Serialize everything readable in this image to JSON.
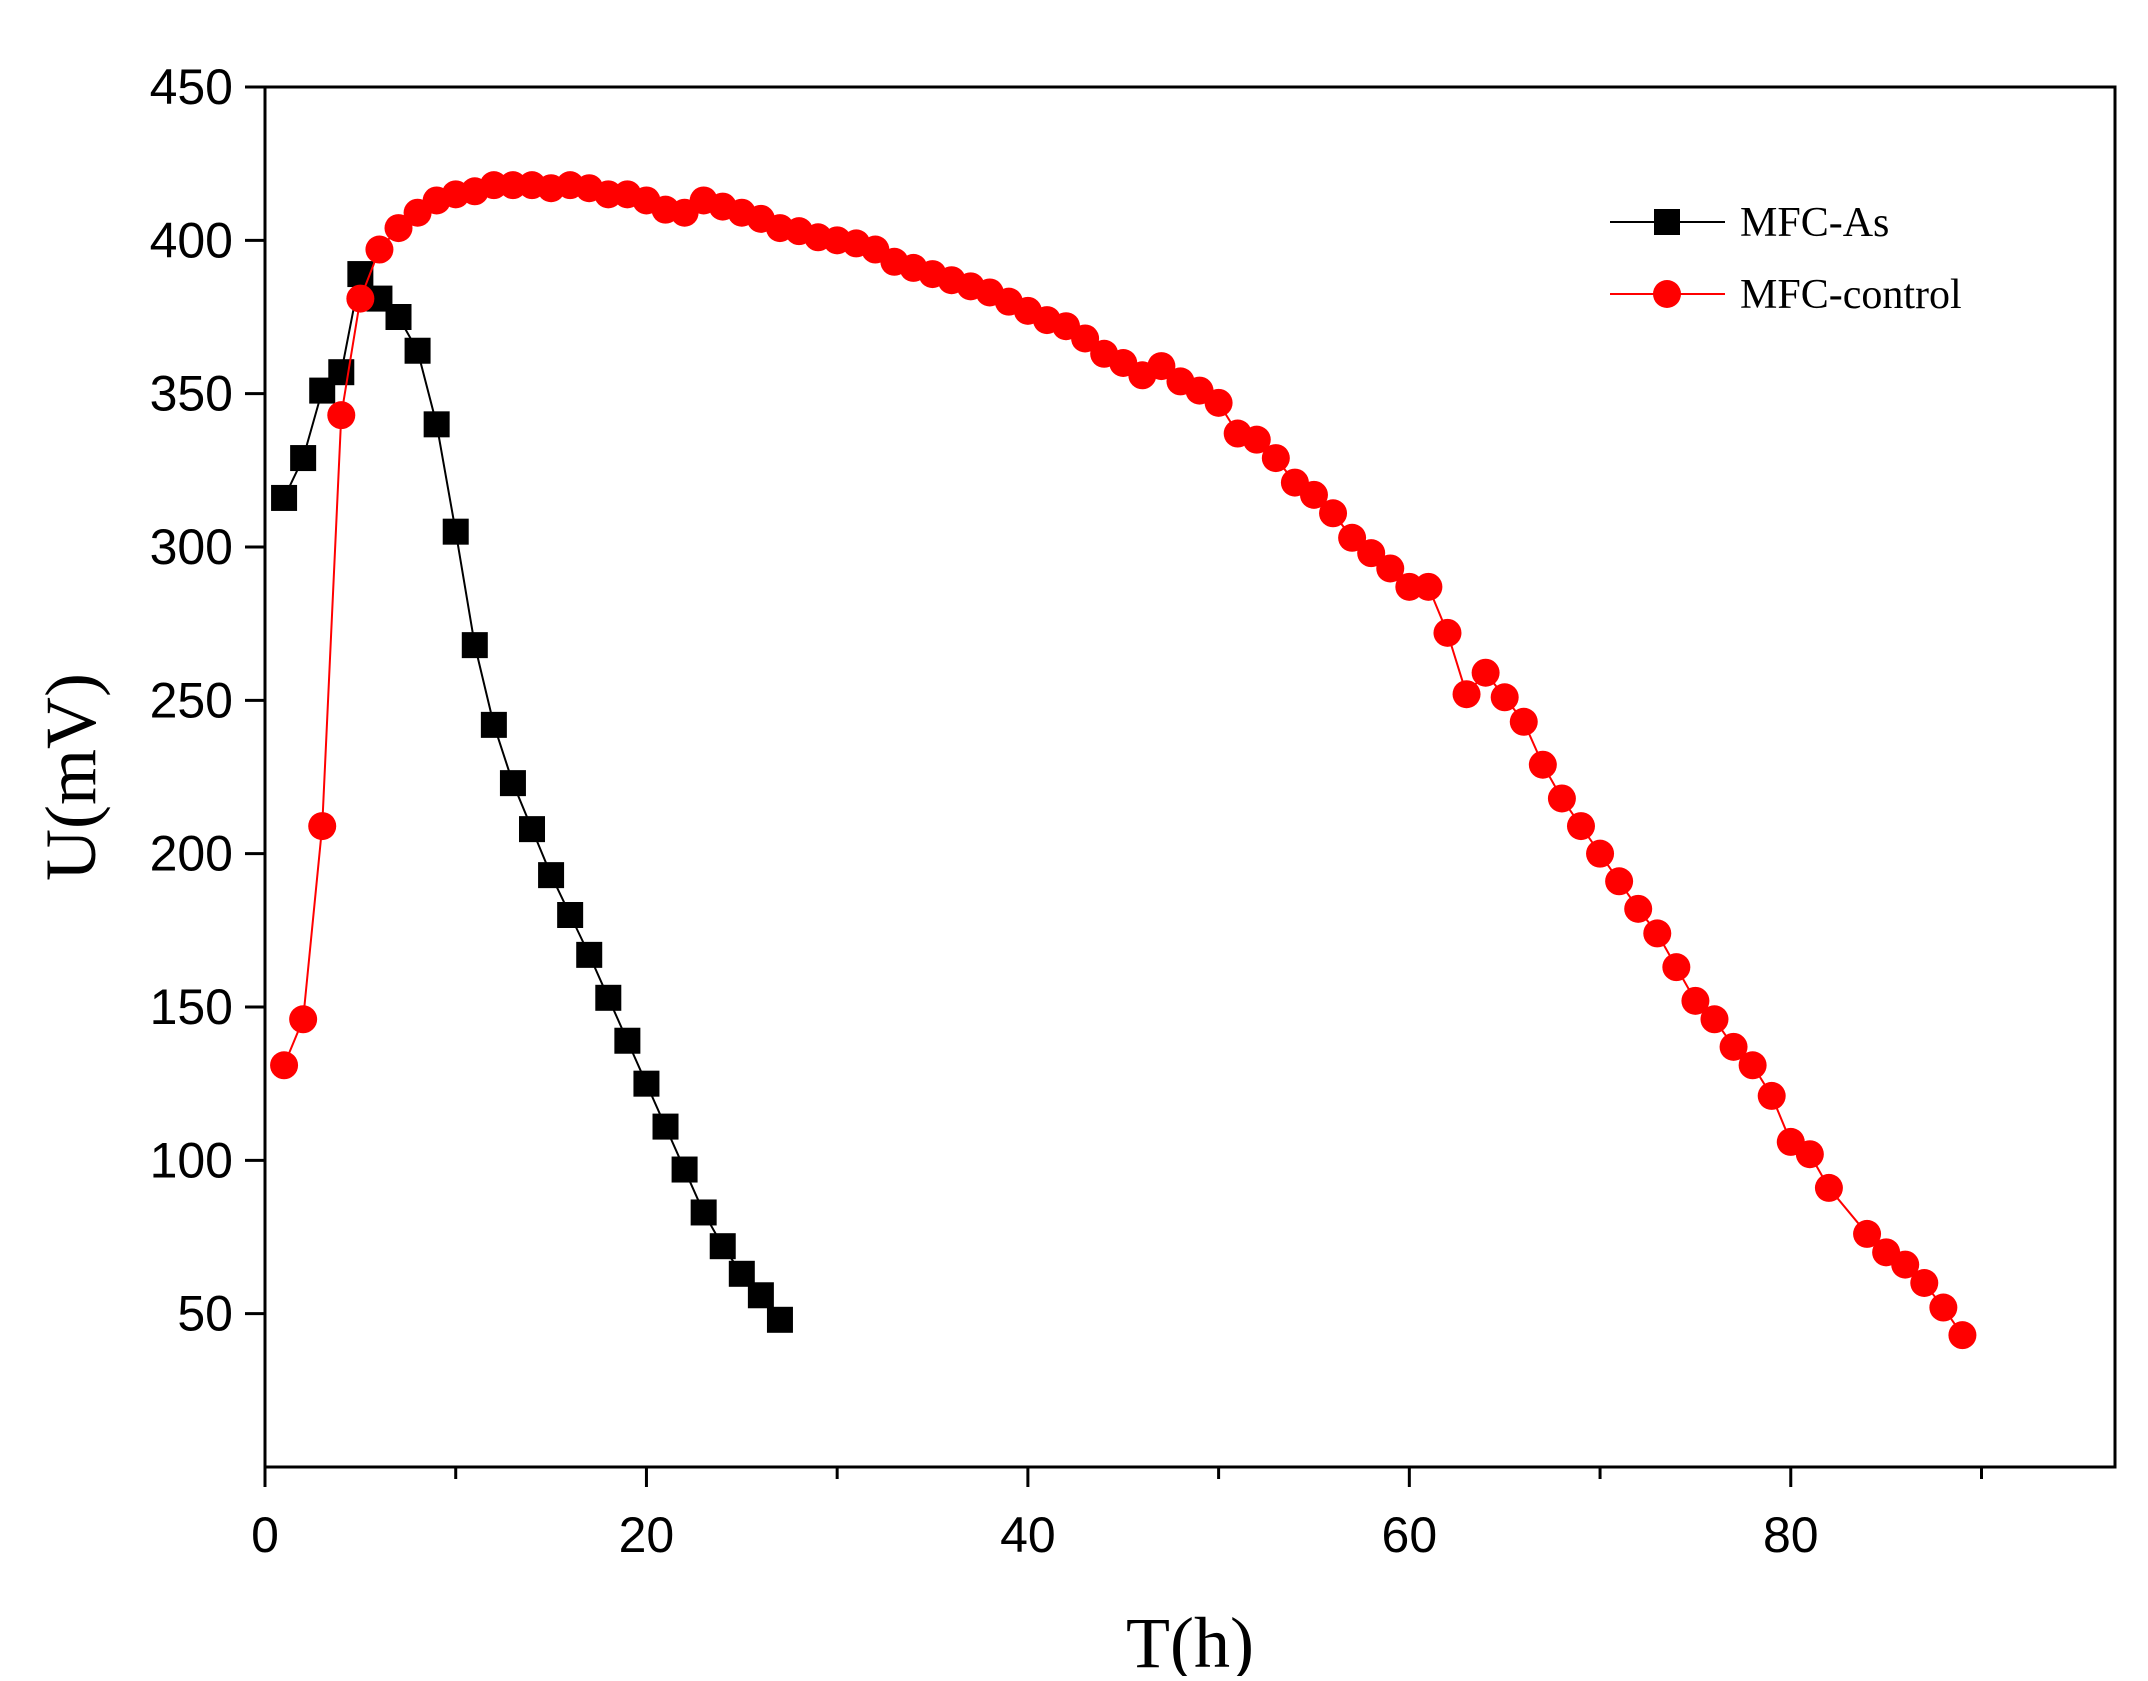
{
  "chart_data": {
    "type": "scatter",
    "title": "",
    "xlabel": "T(h)",
    "ylabel": "U(mV)",
    "xlim": [
      0,
      97
    ],
    "ylim": [
      0,
      450
    ],
    "xticks": [
      0,
      20,
      40,
      60,
      80
    ],
    "xticks_minor": [
      10,
      30,
      50,
      70,
      90
    ],
    "yticks": [
      50,
      100,
      150,
      200,
      250,
      300,
      350,
      400,
      450
    ],
    "grid": false,
    "legend_position": "top-right",
    "series": [
      {
        "name": "MFC-As",
        "color": "#000000",
        "marker": "square",
        "x": [
          1,
          2,
          3,
          4,
          5,
          6,
          7,
          8,
          9,
          10,
          11,
          12,
          13,
          14,
          15,
          16,
          17,
          18,
          19,
          20,
          21,
          22,
          23,
          24,
          25,
          26,
          27
        ],
        "y": [
          316,
          329,
          351,
          357,
          389,
          381,
          375,
          364,
          340,
          305,
          268,
          242,
          223,
          208,
          193,
          180,
          167,
          153,
          139,
          125,
          111,
          97,
          83,
          72,
          63,
          56,
          48
        ]
      },
      {
        "name": "MFC-control",
        "color": "#ff0000",
        "marker": "circle",
        "x": [
          1,
          2,
          3,
          4,
          5,
          6,
          7,
          8,
          9,
          10,
          11,
          12,
          13,
          14,
          15,
          16,
          17,
          18,
          19,
          20,
          21,
          22,
          23,
          24,
          25,
          26,
          27,
          28,
          29,
          30,
          31,
          32,
          33,
          34,
          35,
          36,
          37,
          38,
          39,
          40,
          41,
          42,
          43,
          44,
          45,
          46,
          47,
          48,
          49,
          50,
          51,
          52,
          53,
          54,
          55,
          56,
          57,
          58,
          59,
          60,
          61,
          62,
          63,
          64,
          65,
          66,
          67,
          68,
          69,
          70,
          71,
          72,
          73,
          74,
          75,
          76,
          77,
          78,
          79,
          80,
          81,
          82,
          84,
          85,
          86,
          87,
          88,
          89
        ],
        "y": [
          131,
          146,
          209,
          343,
          381,
          397,
          404,
          409,
          413,
          415,
          416,
          418,
          418,
          418,
          417,
          418,
          417,
          415,
          415,
          413,
          410,
          409,
          413,
          411,
          409,
          407,
          404,
          403,
          401,
          400,
          399,
          397,
          393,
          391,
          389,
          387,
          385,
          383,
          380,
          377,
          374,
          372,
          368,
          363,
          360,
          356,
          359,
          354,
          351,
          347,
          337,
          335,
          329,
          321,
          317,
          311,
          303,
          298,
          293,
          287,
          287,
          272,
          252,
          259,
          251,
          243,
          229,
          218,
          209,
          200,
          191,
          182,
          174,
          163,
          152,
          146,
          137,
          131,
          121,
          106,
          102,
          91,
          76,
          70,
          66,
          60,
          52,
          43
        ]
      }
    ]
  }
}
